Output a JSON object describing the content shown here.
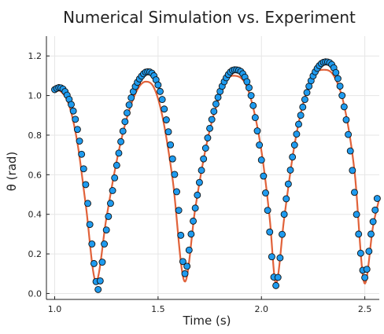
{
  "chart_data": {
    "type": "scatter",
    "title": "Numerical Simulation vs. Experiment",
    "xlabel": "Time (s)",
    "ylabel": "θ (rad)",
    "xlim": [
      0.96,
      2.57
    ],
    "ylim": [
      -0.03,
      1.3
    ],
    "xticks": [
      1.0,
      1.5,
      2.0,
      2.5
    ],
    "xtick_labels": [
      "1.0",
      "1.5",
      "2.0",
      "2.5"
    ],
    "yticks": [
      0.0,
      0.2,
      0.4,
      0.6,
      0.8,
      1.0,
      1.2
    ],
    "ytick_labels": [
      "0.0",
      "0.2",
      "0.4",
      "0.6",
      "0.8",
      "1.0",
      "1.2"
    ],
    "grid": true,
    "legend": false,
    "colors": {
      "scatter": "#1f9bef",
      "scatter_edge": "#111111",
      "line": "#e1623a"
    },
    "series": [
      {
        "kind": "scatter",
        "sample_interval_s": 0.01,
        "points": [
          [
            1.0,
            1.03
          ],
          [
            1.02,
            1.04
          ],
          [
            1.05,
            1.02
          ],
          [
            1.1,
            0.88
          ],
          [
            1.15,
            0.55
          ],
          [
            1.18,
            0.25
          ],
          [
            1.21,
            0.02
          ],
          [
            1.24,
            0.25
          ],
          [
            1.28,
            0.52
          ],
          [
            1.33,
            0.82
          ],
          [
            1.38,
            1.02
          ],
          [
            1.43,
            1.11
          ],
          [
            1.45,
            1.12
          ],
          [
            1.48,
            1.1
          ],
          [
            1.52,
            0.98
          ],
          [
            1.57,
            0.68
          ],
          [
            1.6,
            0.42
          ],
          [
            1.63,
            0.1
          ],
          [
            1.66,
            0.3
          ],
          [
            1.72,
            0.68
          ],
          [
            1.77,
            0.92
          ],
          [
            1.82,
            1.07
          ],
          [
            1.87,
            1.13
          ],
          [
            1.91,
            1.11
          ],
          [
            1.95,
            1.0
          ],
          [
            1.99,
            0.75
          ],
          [
            2.03,
            0.42
          ],
          [
            2.07,
            0.04
          ],
          [
            2.11,
            0.4
          ],
          [
            2.16,
            0.75
          ],
          [
            2.21,
            0.98
          ],
          [
            2.26,
            1.12
          ],
          [
            2.31,
            1.17
          ],
          [
            2.35,
            1.14
          ],
          [
            2.39,
            1.0
          ],
          [
            2.43,
            0.72
          ],
          [
            2.47,
            0.3
          ],
          [
            2.5,
            0.08
          ],
          [
            2.53,
            0.3
          ],
          [
            2.56,
            0.48
          ]
        ]
      },
      {
        "kind": "line",
        "points": [
          [
            1.0,
            1.03
          ],
          [
            1.03,
            1.02
          ],
          [
            1.07,
            0.95
          ],
          [
            1.11,
            0.76
          ],
          [
            1.15,
            0.45
          ],
          [
            1.2,
            0.06
          ],
          [
            1.25,
            0.38
          ],
          [
            1.3,
            0.67
          ],
          [
            1.35,
            0.89
          ],
          [
            1.4,
            1.03
          ],
          [
            1.44,
            1.07
          ],
          [
            1.48,
            1.04
          ],
          [
            1.52,
            0.9
          ],
          [
            1.57,
            0.58
          ],
          [
            1.63,
            0.06
          ],
          [
            1.68,
            0.43
          ],
          [
            1.74,
            0.78
          ],
          [
            1.8,
            1.0
          ],
          [
            1.86,
            1.1
          ],
          [
            1.91,
            1.08
          ],
          [
            1.95,
            0.98
          ],
          [
            2.0,
            0.72
          ],
          [
            2.04,
            0.38
          ],
          [
            2.07,
            0.05
          ],
          [
            2.11,
            0.38
          ],
          [
            2.16,
            0.75
          ],
          [
            2.21,
            0.99
          ],
          [
            2.26,
            1.11
          ],
          [
            2.3,
            1.13
          ],
          [
            2.35,
            1.1
          ],
          [
            2.4,
            0.95
          ],
          [
            2.45,
            0.62
          ],
          [
            2.5,
            0.05
          ],
          [
            2.54,
            0.34
          ],
          [
            2.57,
            0.48
          ]
        ]
      }
    ]
  }
}
